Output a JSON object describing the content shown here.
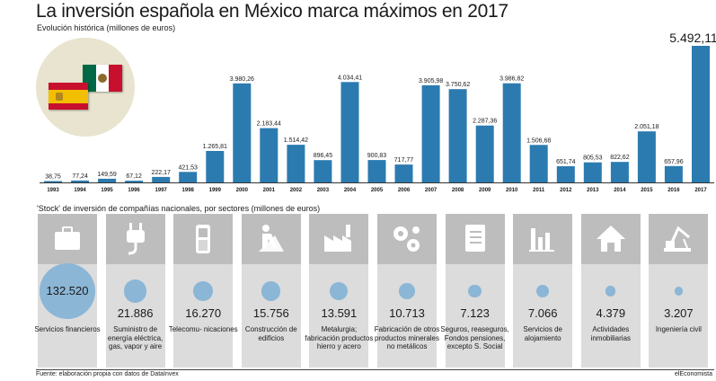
{
  "header": {
    "title": "La inversión española en México marca máximos en 2017",
    "subtitle": "Evolución histórica (millones de euros)"
  },
  "chart_data": {
    "type": "bar",
    "title": "La inversión española en México marca máximos en 2017",
    "subtitle": "Evolución histórica (millones de euros)",
    "categories": [
      "1993",
      "1994",
      "1995",
      "1996",
      "1997",
      "1998",
      "1999",
      "2000",
      "2001",
      "2002",
      "2003",
      "2004",
      "2005",
      "2006",
      "2007",
      "2008",
      "2009",
      "2010",
      "2011",
      "2012",
      "2013",
      "2014",
      "2015",
      "2016",
      "2017"
    ],
    "values": [
      38.75,
      77.24,
      149.59,
      67.12,
      222.17,
      421.53,
      1265.81,
      3980.26,
      2183.44,
      1514.42,
      896.45,
      4034.41,
      900.83,
      717.77,
      3905.98,
      3750.62,
      2287.36,
      3986.82,
      1506.68,
      651.74,
      805.53,
      822.62,
      2051.18,
      657.96,
      5492.11
    ],
    "labels": [
      "38,75",
      "77,24",
      "149,59",
      "67,12",
      "222,17",
      "421,53",
      "1.265,81",
      "3.980,26",
      "2.183,44",
      "1.514,42",
      "896,45",
      "4.034,41",
      "900,83",
      "717,77",
      "3.905,98",
      "3.750,62",
      "2.287,36",
      "3.986,82",
      "1.506,68",
      "651,74",
      "805,53",
      "822,62",
      "2.051,18",
      "657,96",
      "5.492,11"
    ],
    "ylim": [
      0,
      5600
    ],
    "grid": false,
    "bar_color": "#2b7bb0"
  },
  "sectors": {
    "title": "'Stock' de inversión de compañías nacionales, por sectores (millones de euros)",
    "dot_color": "#8bb6d6",
    "items": [
      {
        "icon": "briefcase-icon",
        "value": "132.520",
        "amount": 132520,
        "label": "Servicios financieros"
      },
      {
        "icon": "plug-icon",
        "value": "21.886",
        "amount": 21886,
        "label": "Suministro de energía eléctrica, gas, vapor y aire"
      },
      {
        "icon": "mobile-phone-icon",
        "value": "16.270",
        "amount": 16270,
        "label": "Telecomu- nicaciones"
      },
      {
        "icon": "construction-worker-icon",
        "value": "15.756",
        "amount": 15756,
        "label": "Construcción de edificios"
      },
      {
        "icon": "factory-icon",
        "value": "13.591",
        "amount": 13591,
        "label": "Metalurgia; fabricación productos hierro y acero"
      },
      {
        "icon": "gears-icon",
        "value": "10.713",
        "amount": 10713,
        "label": "Fabricación de otros productos minerales no metálicos"
      },
      {
        "icon": "notebook-icon",
        "value": "7.123",
        "amount": 7123,
        "label": "Seguros, reaseguros, Fondos pensiones, excepto S. Social"
      },
      {
        "icon": "bar-chart-icon",
        "value": "7.066",
        "amount": 7066,
        "label": "Servicios de alojamiento"
      },
      {
        "icon": "house-icon",
        "value": "4.379",
        "amount": 4379,
        "label": "Actividades inmobiliarias"
      },
      {
        "icon": "crane-icon",
        "value": "3.207",
        "amount": 3207,
        "label": "Ingeniería civil"
      }
    ]
  },
  "footer": {
    "source": "Fuente: elaboración propia con datos de DataInvex",
    "brand": "elEconomista"
  },
  "colors": {
    "flag_red": "#c8102e",
    "flag_yellow": "#f1bf00",
    "flag_green": "#006847",
    "flag_white": "#ffffff"
  }
}
